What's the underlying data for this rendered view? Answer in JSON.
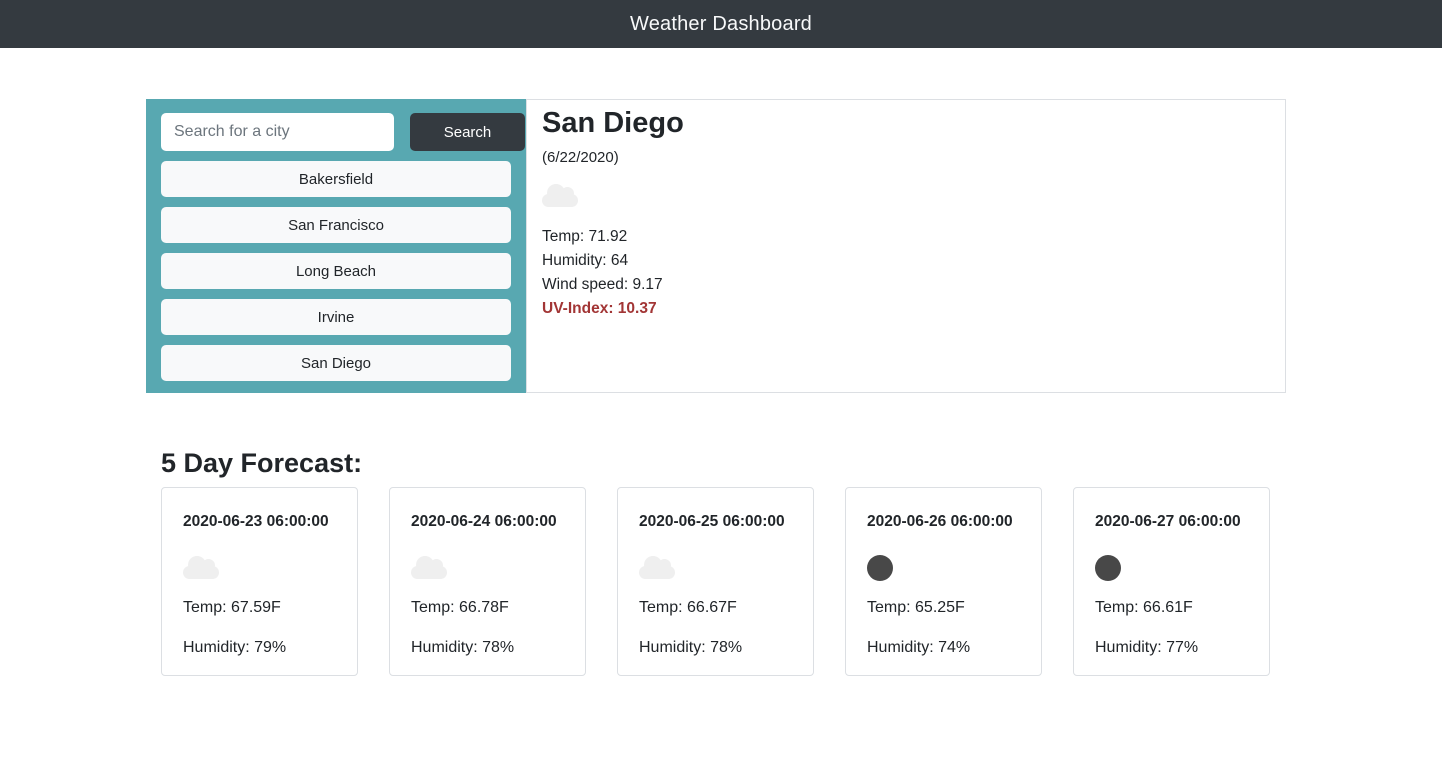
{
  "header": {
    "title": "Weather Dashboard"
  },
  "sidebar": {
    "search": {
      "placeholder": "Search for a city",
      "button_label": "Search"
    },
    "cities": [
      "Bakersfield",
      "San Francisco",
      "Long Beach",
      "Irvine",
      "San Diego"
    ]
  },
  "current": {
    "city": "San Diego",
    "date": "(6/22/2020)",
    "icon": "cloud-icon",
    "temp": "Temp: 71.92",
    "humidity": "Humidity: 64",
    "wind": "Wind speed: 9.17",
    "uv": "UV-Index: 10.37"
  },
  "forecast": {
    "heading": "5 Day Forecast:",
    "cards": [
      {
        "datetime": "2020-06-23 06:00:00",
        "icon": "cloud-icon",
        "temp": "Temp: 67.59F",
        "humidity": "Humidity: 79%"
      },
      {
        "datetime": "2020-06-24 06:00:00",
        "icon": "cloud-icon",
        "temp": "Temp: 66.78F",
        "humidity": "Humidity: 78%"
      },
      {
        "datetime": "2020-06-25 06:00:00",
        "icon": "cloud-icon",
        "temp": "Temp: 66.67F",
        "humidity": "Humidity: 78%"
      },
      {
        "datetime": "2020-06-26 06:00:00",
        "icon": "moon-icon",
        "temp": "Temp: 65.25F",
        "humidity": "Humidity: 74%"
      },
      {
        "datetime": "2020-06-27 06:00:00",
        "icon": "moon-icon",
        "temp": "Temp: 66.61F",
        "humidity": "Humidity: 77%"
      }
    ]
  },
  "colors": {
    "header_bg": "#343a40",
    "sidebar_bg": "#58a8b1",
    "uv_text": "#a23535",
    "moon_icon": "#484848",
    "cloud_icon": "#efefef"
  }
}
